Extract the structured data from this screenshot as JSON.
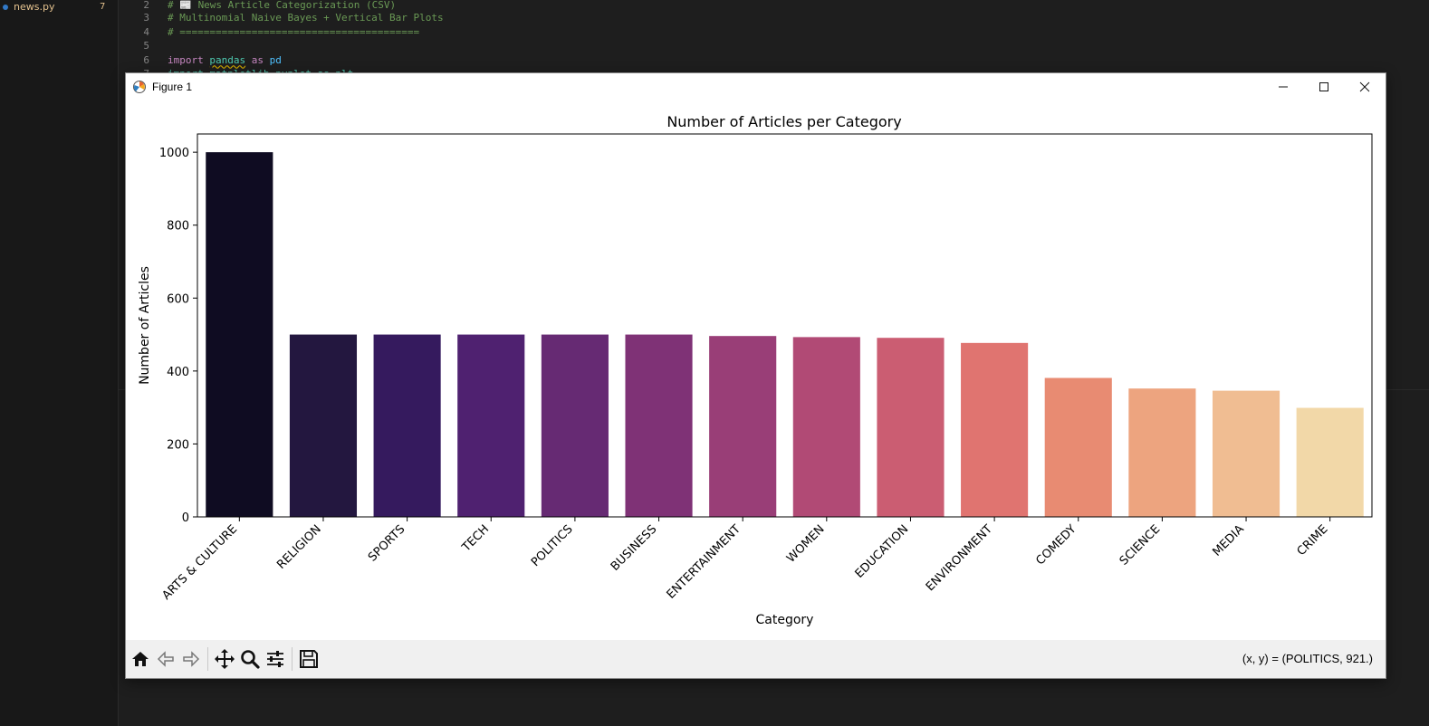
{
  "explorer": {
    "file_name": "news.py",
    "problem_count": "7"
  },
  "editor": {
    "lines": [
      {
        "num": "2",
        "text": "# 📰 News Article Categorization (CSV)"
      },
      {
        "num": "3",
        "text": "# Multinomial Naive Bayes + Vertical Bar Plots"
      },
      {
        "num": "4",
        "text": "# ========================================"
      },
      {
        "num": "5",
        "text": ""
      },
      {
        "num": "6",
        "kw1": "import",
        "mod": "pandas",
        "kw2": "as",
        "alias": "pd"
      },
      {
        "num": "7",
        "text": "import matplotlib.pyplot as plt"
      }
    ]
  },
  "window": {
    "title": "Figure 1",
    "minimize_icon": "minimize-icon",
    "maximize_icon": "maximize-icon",
    "close_icon": "close-icon"
  },
  "toolbar": {
    "buttons": [
      "home-icon",
      "back-arrow-icon",
      "forward-arrow-icon",
      "pan-icon",
      "zoom-icon",
      "configure-subplots-icon",
      "save-icon"
    ],
    "coords": "(x, y) = (POLITICS, 921.)"
  },
  "chart_data": {
    "type": "bar",
    "title": "Number of Articles per Category",
    "xlabel": "Category",
    "ylabel": "Number of Articles",
    "categories": [
      "ARTS & CULTURE",
      "RELIGION",
      "SPORTS",
      "TECH",
      "POLITICS",
      "BUSINESS",
      "ENTERTAINMENT",
      "WOMEN",
      "EDUCATION",
      "ENVIRONMENT",
      "COMEDY",
      "SCIENCE",
      "MEDIA",
      "CRIME"
    ],
    "values": [
      1000,
      500,
      500,
      500,
      500,
      500,
      496,
      493,
      491,
      477,
      381,
      352,
      346,
      299
    ],
    "colors": [
      "#0f0c22",
      "#23173f",
      "#351a5e",
      "#4f2170",
      "#662a73",
      "#7f3276",
      "#993e77",
      "#b14a75",
      "#cb5d72",
      "#e07470",
      "#e88b72",
      "#eda47f",
      "#f0bd92",
      "#f2d8a8"
    ],
    "yticks": [
      0,
      200,
      400,
      600,
      800,
      1000
    ],
    "ylim": [
      0,
      1050
    ],
    "grid": false,
    "legend": false
  }
}
